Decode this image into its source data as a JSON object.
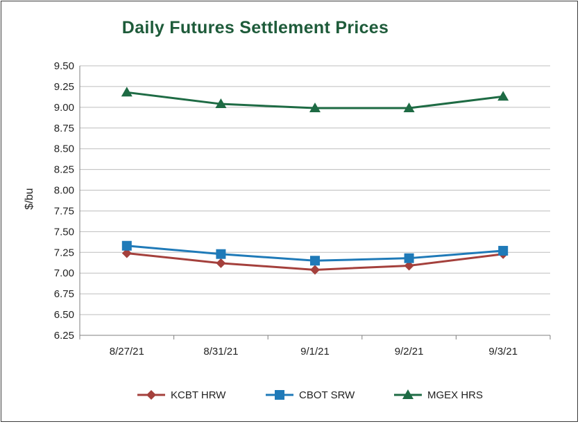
{
  "chart_data": {
    "type": "line",
    "title": "Daily Futures Settlement Prices",
    "ylabel": "$/bu",
    "xlabel": "",
    "ylim": [
      6.25,
      9.5
    ],
    "ytick_step": 0.25,
    "grid": true,
    "legend_position": "bottom",
    "categories": [
      "8/27/21",
      "8/31/21",
      "9/1/21",
      "9/2/21",
      "9/3/21"
    ],
    "series": [
      {
        "name": "KCBT HRW",
        "color": "#a4403c",
        "marker": "diamond",
        "values": [
          7.24,
          7.12,
          7.04,
          7.09,
          7.23
        ]
      },
      {
        "name": "CBOT SRW",
        "color": "#1f7ab8",
        "marker": "square",
        "values": [
          7.33,
          7.23,
          7.15,
          7.18,
          7.27
        ]
      },
      {
        "name": "MGEX HRS",
        "color": "#1e6b44",
        "marker": "triangle",
        "values": [
          9.18,
          9.04,
          8.99,
          8.99,
          9.13
        ]
      }
    ]
  }
}
